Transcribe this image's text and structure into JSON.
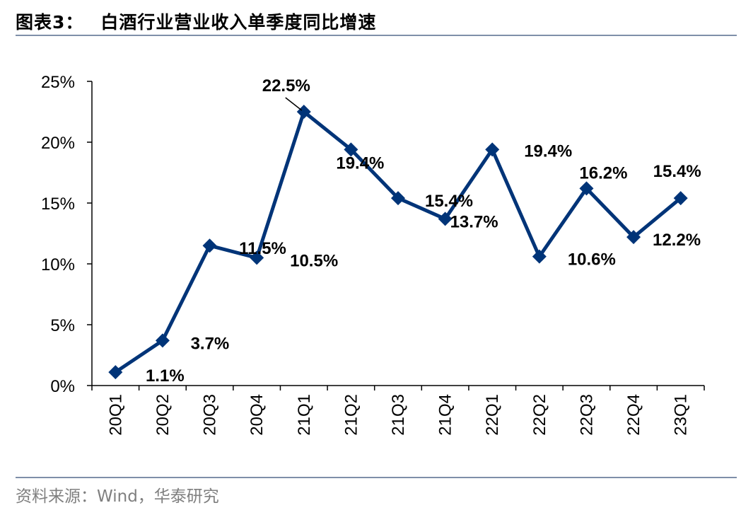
{
  "header": {
    "figure_label": "图表3：",
    "title": "白酒行业营业收入单季度同比增速"
  },
  "footer": {
    "source": "资料来源：Wind，华泰研究"
  },
  "chart_data": {
    "type": "line",
    "title": "白酒行业营业收入单季度同比增速",
    "categories": [
      "20Q1",
      "20Q2",
      "20Q3",
      "20Q4",
      "21Q1",
      "21Q2",
      "21Q3",
      "21Q4",
      "22Q1",
      "22Q2",
      "22Q3",
      "22Q4",
      "23Q1"
    ],
    "series": [
      {
        "name": "白酒行业营业收入单季度同比增速",
        "values": [
          1.1,
          3.7,
          11.5,
          10.5,
          22.5,
          19.4,
          15.4,
          13.7,
          19.4,
          10.6,
          16.2,
          12.2,
          15.4
        ],
        "labels": [
          "1.1%",
          "3.7%",
          "11.5%",
          "10.5%",
          "22.5%",
          "19.4%",
          "15.4%",
          "13.7%",
          "19.4%",
          "10.6%",
          "16.2%",
          "12.2%",
          "15.4%"
        ]
      }
    ],
    "yticks": [
      "0%",
      "5%",
      "10%",
      "15%",
      "20%",
      "25%"
    ],
    "ylim": [
      0,
      25
    ],
    "xlabel": "",
    "ylabel": "",
    "line_color": "#003478",
    "marker": "diamond"
  }
}
